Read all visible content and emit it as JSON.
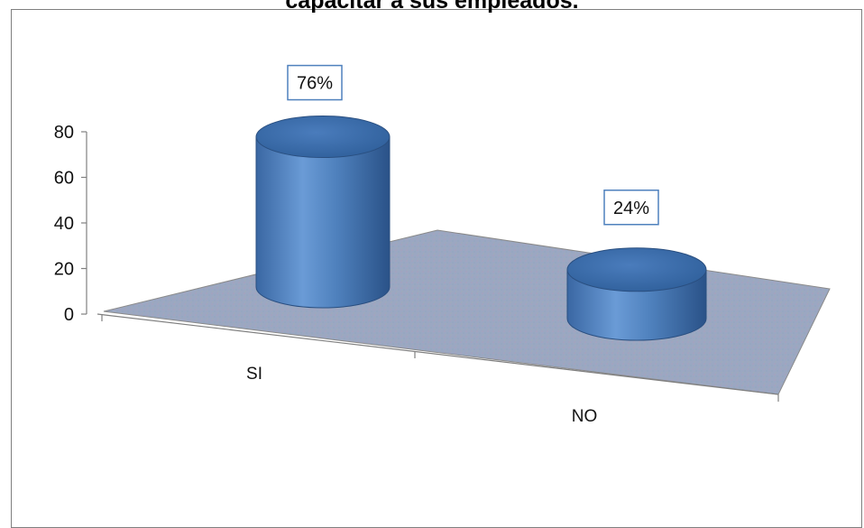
{
  "title": "capacitar a sus empleados.",
  "chart_data": {
    "type": "bar",
    "style": "3d-cylinder",
    "title": "capacitar a sus empleados.",
    "categories": [
      "SI",
      "NO"
    ],
    "values": [
      76,
      24
    ],
    "data_labels": [
      "76%",
      "24%"
    ],
    "y_ticks": [
      "0",
      "20",
      "40",
      "60",
      "80"
    ],
    "ylim": [
      0,
      80
    ],
    "xlabel": "",
    "ylabel": "",
    "grid": false,
    "legend": "none",
    "colors": {
      "bar": "#4f81bd",
      "bar_dark": "#2f5c92",
      "bar_top": "#3e6fae",
      "floor": "#9aa6c0",
      "label_border": "#4f81bd"
    }
  }
}
